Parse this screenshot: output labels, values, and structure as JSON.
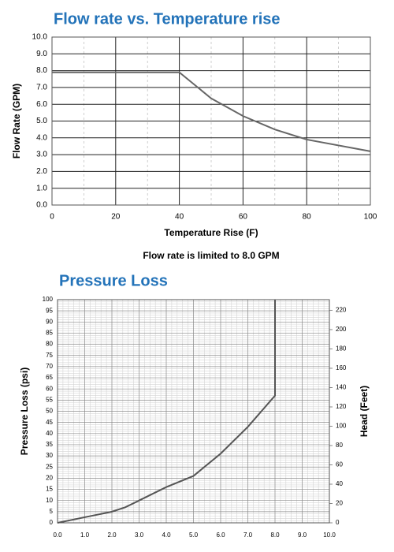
{
  "chart_data": [
    {
      "type": "line",
      "title": "Flow rate vs. Temperature rise",
      "x_label": "Temperature Rise (F)",
      "y_label": "Flow Rate (GPM)",
      "annotation": "Flow rate is limited to 8.0 GPM",
      "x": [
        0,
        40,
        50,
        60,
        70,
        80,
        100
      ],
      "values": [
        7.9,
        7.9,
        6.35,
        5.3,
        4.5,
        3.9,
        3.2
      ],
      "color": "#666666",
      "xlim": [
        0,
        100
      ],
      "xticks": [
        0,
        20,
        40,
        60,
        80,
        100
      ],
      "ylim": [
        0,
        10
      ],
      "yticks": [
        {
          "value": 0,
          "label": "0.0"
        },
        {
          "value": 1,
          "label": "1.0"
        },
        {
          "value": 2,
          "label": "2.0"
        },
        {
          "value": 3,
          "label": "3.0"
        },
        {
          "value": 4,
          "label": "4.0"
        },
        {
          "value": 5,
          "label": "5.0"
        },
        {
          "value": 6,
          "label": "6.0"
        },
        {
          "value": 7,
          "label": "7.0"
        },
        {
          "value": 8,
          "label": "8.0"
        },
        {
          "value": 9,
          "label": "9.0"
        },
        {
          "value": 10,
          "label": "10.0"
        }
      ],
      "grid": true,
      "minor_grid": false
    },
    {
      "type": "line",
      "title": "Pressure Loss",
      "y_label": "Pressure Loss (psi)",
      "y2_label": "Head (Feet)",
      "x": [
        0,
        1,
        2,
        2.5,
        3,
        4,
        5,
        6,
        7,
        8,
        8
      ],
      "values": [
        0,
        2.5,
        5,
        7,
        10,
        16,
        21,
        31,
        43,
        57,
        100
      ],
      "color": "#555555",
      "xlim": [
        0,
        10
      ],
      "xticks": [
        {
          "value": 0,
          "label": "0.0"
        },
        {
          "value": 1,
          "label": "1.0"
        },
        {
          "value": 2,
          "label": "2.0"
        },
        {
          "value": 3,
          "label": "3.0"
        },
        {
          "value": 4,
          "label": "4.0"
        },
        {
          "value": 5,
          "label": "5.0"
        },
        {
          "value": 6,
          "label": "6.0"
        },
        {
          "value": 7,
          "label": "7.0"
        },
        {
          "value": 8,
          "label": "8.0"
        },
        {
          "value": 9,
          "label": "9.0"
        },
        {
          "value": 10,
          "label": "10.0"
        }
      ],
      "ylim": [
        0,
        100
      ],
      "yticks": [
        0,
        5,
        10,
        15,
        20,
        25,
        30,
        35,
        40,
        45,
        50,
        55,
        60,
        65,
        70,
        75,
        80,
        85,
        90,
        95,
        100
      ],
      "y2lim": [
        0,
        231
      ],
      "y2ticks": [
        0,
        20,
        40,
        60,
        80,
        100,
        120,
        140,
        160,
        180,
        200,
        220
      ],
      "grid": true,
      "minor_grid": true
    }
  ]
}
